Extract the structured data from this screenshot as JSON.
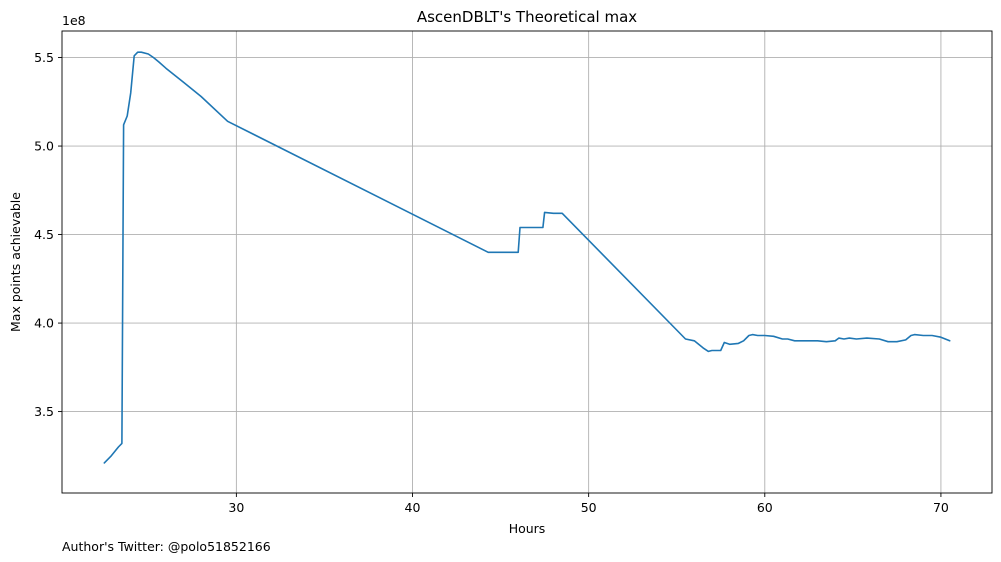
{
  "chart_data": {
    "type": "line",
    "title": "AscenDBLT's Theoretical max",
    "xlabel": "Hours",
    "ylabel": "Max points achievable",
    "y_offset_text": "1e8",
    "footer": "Author's Twitter: @polo51852166",
    "xlim": [
      20.1,
      72.9
    ],
    "ylim": [
      3.04,
      5.65
    ],
    "x_ticks": [
      30,
      40,
      50,
      60,
      70
    ],
    "y_ticks": [
      3.5,
      4.0,
      4.5,
      5.0,
      5.5
    ],
    "x_tick_labels": [
      "30",
      "40",
      "50",
      "60",
      "70"
    ],
    "y_tick_labels": [
      "3.5",
      "4.0",
      "4.5",
      "5.0",
      "5.5"
    ],
    "grid": true,
    "series": [
      {
        "color": "#1f77b4",
        "x": [
          22.5,
          22.9,
          23.3,
          23.5,
          23.6,
          23.8,
          24.0,
          24.2,
          24.4,
          24.6,
          25.0,
          25.3,
          25.6,
          26.0,
          27.0,
          28.0,
          29.5,
          44.3,
          44.5,
          45.0,
          45.5,
          45.8,
          46.0,
          46.1,
          46.5,
          46.8,
          47.2,
          47.4,
          47.5,
          48.0,
          48.5,
          55.5,
          56.0,
          56.5,
          56.8,
          57.0,
          57.5,
          57.7,
          58.0,
          58.5,
          58.8,
          59.1,
          59.3,
          59.6,
          60.0,
          60.5,
          61.0,
          61.3,
          61.7,
          62.0,
          62.5,
          63.0,
          63.5,
          64.0,
          64.2,
          64.5,
          64.8,
          65.2,
          65.8,
          66.5,
          67.0,
          67.5,
          68.0,
          68.3,
          68.5,
          69.0,
          69.5,
          70.0,
          70.5
        ],
        "y": [
          3.21,
          3.25,
          3.3,
          3.32,
          5.12,
          5.17,
          5.3,
          5.51,
          5.53,
          5.53,
          5.52,
          5.5,
          5.475,
          5.44,
          5.36,
          5.28,
          5.14,
          4.4,
          4.4,
          4.4,
          4.4,
          4.4,
          4.4,
          4.54,
          4.54,
          4.54,
          4.54,
          4.54,
          4.625,
          4.62,
          4.62,
          3.91,
          3.9,
          3.86,
          3.84,
          3.845,
          3.845,
          3.89,
          3.88,
          3.885,
          3.9,
          3.93,
          3.935,
          3.93,
          3.93,
          3.925,
          3.91,
          3.91,
          3.9,
          3.9,
          3.9,
          3.9,
          3.895,
          3.9,
          3.915,
          3.91,
          3.915,
          3.91,
          3.915,
          3.91,
          3.895,
          3.895,
          3.905,
          3.93,
          3.935,
          3.93,
          3.93,
          3.92,
          3.9
        ]
      }
    ]
  }
}
